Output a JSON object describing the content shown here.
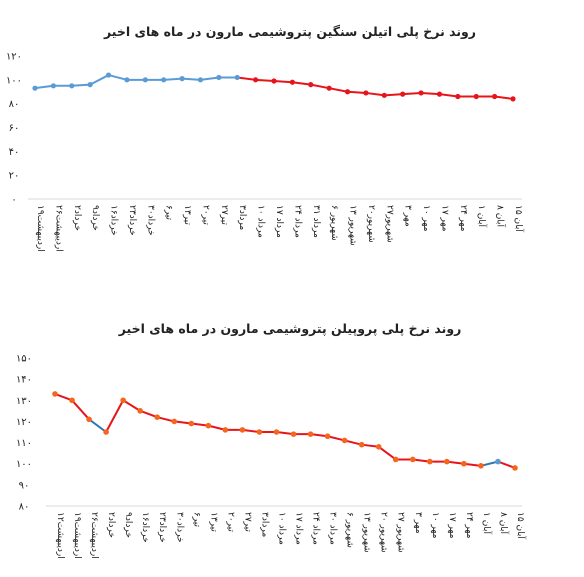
{
  "chart_data": [
    {
      "type": "line",
      "title": "روند نرخ پلی اتیلن سنگین پتروشیمی مارون در ماه های اخیر",
      "ylim": [
        0,
        120
      ],
      "yticks": [
        "۰",
        "۲۰",
        "۴۰",
        "۶۰",
        "۸۰",
        "۱۰۰",
        "۱۲۰"
      ],
      "grid": false,
      "categories": [
        "۱۹اردیبهشت",
        "۲۶اردیبهشت",
        "۲خرداد",
        "۹خرداد",
        "۱۶خرداد",
        "۲۳خرداد",
        "۳۰خرداد",
        "۶تیر",
        "۱۳تیر",
        "۲۰تیر",
        "۲۷تیر",
        "۳مرداد",
        "۱۰ مرداد",
        "۱۷ مرداد",
        "۲۴ مرداد",
        "۳۱ مرداد",
        "۶ شهریور",
        "۱۳ شهریور",
        "۲۰شهریور",
        "۲۷شهریور",
        "۳ مهر",
        "۱۰ مهر",
        "۱۷ مهر",
        "۲۴ مهر",
        "۱ آبان",
        "۸ آبان",
        "۱۵ آبان"
      ],
      "series": [
        {
          "values": [
            93,
            95,
            95,
            96,
            104,
            100,
            100,
            100,
            101,
            100,
            102,
            102,
            100,
            99,
            98,
            96,
            93,
            90,
            89,
            87,
            88,
            89,
            88,
            86,
            86,
            86,
            84
          ]
        }
      ],
      "line_color": "#5b9bd5",
      "highlight_color": "#e8141b",
      "highlight_from_index": 11,
      "marker_color": "#5b9bd5",
      "highlight_marker_color": "#e8141b"
    },
    {
      "type": "line",
      "title": "روند نرخ پلی پروپیلن پتروشیمی مارون در ماه های اخیر",
      "ylim": [
        80,
        150
      ],
      "yticks": [
        "۸۰",
        "۹۰",
        "۱۰۰",
        "۱۱۰",
        "۱۲۰",
        "۱۳۰",
        "۱۴۰",
        "۱۵۰"
      ],
      "grid": false,
      "categories": [
        "۱۲اردیبهشت",
        "۱۹اردیبهشت",
        "۲۶اردیبهشت",
        "۲خرداد",
        "۹خرداد",
        "۱۶خرداد",
        "۲۳خرداد",
        "۳۰خرداد",
        "۶تیر",
        "۱۳تیر",
        "۲۰تیر",
        "۲۷تیر",
        "۳مرداد",
        "۱۰ مرداد",
        "۱۷ مرداد",
        "۲۴ مرداد",
        "۳۰ مرداد",
        "۶ شهریور",
        "۱۳ شهریور",
        "۲۰ شهریور",
        "۲۷ شهریور",
        "۳ مهر",
        "۱۰ مهر",
        "۱۷ مهر",
        "۲۴ مهر",
        "۱ آبان",
        "۸ آبان",
        "۱۵ آبان"
      ],
      "series": [
        {
          "values": [
            133,
            130,
            121,
            115,
            130,
            125,
            122,
            120,
            119,
            118,
            116,
            116,
            115,
            115,
            114,
            114,
            113,
            111,
            109,
            108,
            102,
            102,
            101,
            101,
            100,
            99,
            101,
            98
          ]
        }
      ],
      "line_color": "#e8141b",
      "alt_line_color": "#2e75b6",
      "alt_segments": [
        [
          2,
          4
        ],
        [
          25,
          26
        ]
      ],
      "marker_color": "#f7641c",
      "alt_marker_color": "#5b9bd5",
      "alt_marker_indices": [
        26
      ]
    }
  ]
}
